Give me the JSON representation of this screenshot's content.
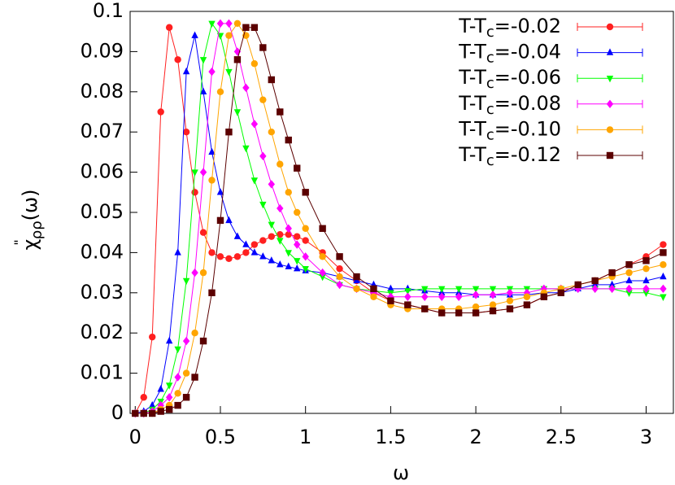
{
  "chart_data": {
    "type": "line",
    "xlabel": "ω",
    "ylabel": {
      "symbol": "χ",
      "prime": "\"",
      "sub": "ρρ",
      "arg": "(ω)"
    },
    "xlim": [
      -0.03,
      3.16
    ],
    "ylim": [
      0,
      0.1
    ],
    "xticks": [
      0,
      0.5,
      1,
      1.5,
      2,
      2.5,
      3
    ],
    "yticks": [
      0,
      0.01,
      0.02,
      0.03,
      0.04,
      0.05,
      0.06,
      0.07,
      0.08,
      0.09,
      0.1
    ],
    "legend": "upper-right",
    "x": [
      0,
      0.05,
      0.1,
      0.15,
      0.2,
      0.25,
      0.3,
      0.35,
      0.4,
      0.45,
      0.5,
      0.55,
      0.6,
      0.65,
      0.7,
      0.75,
      0.8,
      0.85,
      0.9,
      0.95,
      1.0,
      1.1,
      1.2,
      1.3,
      1.4,
      1.5,
      1.6,
      1.7,
      1.8,
      1.9,
      2.0,
      2.1,
      2.2,
      2.3,
      2.4,
      2.5,
      2.6,
      2.7,
      2.8,
      2.9,
      3.0,
      3.1
    ],
    "series": [
      {
        "name": [
          "T-T",
          "c",
          "=-0.02"
        ],
        "color": "#ff2020",
        "marker": "circle",
        "values": [
          0,
          0.004,
          0.019,
          0.075,
          0.096,
          0.088,
          0.07,
          0.055,
          0.045,
          0.04,
          0.039,
          0.0385,
          0.039,
          0.04,
          0.042,
          0.043,
          0.044,
          0.0445,
          0.0445,
          0.044,
          0.043,
          0.04,
          0.036,
          0.033,
          0.03,
          0.028,
          0.027,
          0.026,
          0.025,
          0.025,
          0.025,
          0.0255,
          0.026,
          0.027,
          0.029,
          0.03,
          0.032,
          0.033,
          0.035,
          0.037,
          0.039,
          0.042
        ]
      },
      {
        "name": [
          "T-T",
          "c",
          "=-0.04"
        ],
        "color": "#0000ff",
        "marker": "triangle",
        "values": [
          0,
          0.0005,
          0.002,
          0.006,
          0.018,
          0.04,
          0.085,
          0.094,
          0.08,
          0.065,
          0.055,
          0.048,
          0.044,
          0.042,
          0.04,
          0.039,
          0.038,
          0.037,
          0.0365,
          0.036,
          0.0355,
          0.035,
          0.034,
          0.033,
          0.032,
          0.031,
          0.031,
          0.0305,
          0.03,
          0.03,
          0.0295,
          0.0295,
          0.0295,
          0.0295,
          0.03,
          0.03,
          0.031,
          0.032,
          0.032,
          0.033,
          0.033,
          0.034
        ]
      },
      {
        "name": [
          "T-T",
          "c",
          "=-0.06"
        ],
        "color": "#00ff00",
        "marker": "triangle-down",
        "values": [
          0,
          0,
          0.001,
          0.003,
          0.007,
          0.016,
          0.033,
          0.06,
          0.088,
          0.097,
          0.094,
          0.085,
          0.075,
          0.066,
          0.058,
          0.052,
          0.047,
          0.043,
          0.04,
          0.038,
          0.036,
          0.034,
          0.032,
          0.031,
          0.0305,
          0.03,
          0.0305,
          0.031,
          0.031,
          0.031,
          0.031,
          0.031,
          0.031,
          0.031,
          0.031,
          0.031,
          0.031,
          0.031,
          0.031,
          0.03,
          0.03,
          0.029
        ]
      },
      {
        "name": [
          "T-T",
          "c",
          "=-0.08"
        ],
        "color": "#ff00ff",
        "marker": "diamond",
        "values": [
          0,
          0,
          0.0005,
          0.002,
          0.004,
          0.009,
          0.018,
          0.035,
          0.06,
          0.085,
          0.097,
          0.097,
          0.09,
          0.081,
          0.072,
          0.064,
          0.057,
          0.051,
          0.046,
          0.042,
          0.039,
          0.035,
          0.032,
          0.031,
          0.03,
          0.029,
          0.029,
          0.029,
          0.029,
          0.029,
          0.0295,
          0.0295,
          0.03,
          0.03,
          0.031,
          0.031,
          0.031,
          0.031,
          0.031,
          0.031,
          0.031,
          0.031
        ]
      },
      {
        "name": [
          "T-T",
          "c",
          "=-0.10"
        ],
        "color": "#ffa500",
        "marker": "pentagon",
        "values": [
          0,
          0,
          0,
          0.001,
          0.002,
          0.005,
          0.01,
          0.02,
          0.035,
          0.058,
          0.08,
          0.094,
          0.097,
          0.094,
          0.087,
          0.078,
          0.07,
          0.062,
          0.055,
          0.05,
          0.046,
          0.039,
          0.034,
          0.031,
          0.029,
          0.027,
          0.026,
          0.026,
          0.026,
          0.026,
          0.0265,
          0.027,
          0.028,
          0.029,
          0.03,
          0.031,
          0.032,
          0.033,
          0.034,
          0.035,
          0.036,
          0.037
        ]
      },
      {
        "name": [
          "T-T",
          "c",
          "=-0.12"
        ],
        "color": "#5b0000",
        "marker": "square",
        "values": [
          0,
          0,
          0,
          0.0005,
          0.001,
          0.002,
          0.004,
          0.009,
          0.018,
          0.03,
          0.048,
          0.07,
          0.088,
          0.096,
          0.096,
          0.091,
          0.083,
          0.075,
          0.068,
          0.061,
          0.055,
          0.046,
          0.039,
          0.034,
          0.031,
          0.028,
          0.027,
          0.026,
          0.025,
          0.025,
          0.025,
          0.0255,
          0.026,
          0.027,
          0.029,
          0.03,
          0.032,
          0.033,
          0.035,
          0.037,
          0.038,
          0.04
        ]
      }
    ]
  }
}
